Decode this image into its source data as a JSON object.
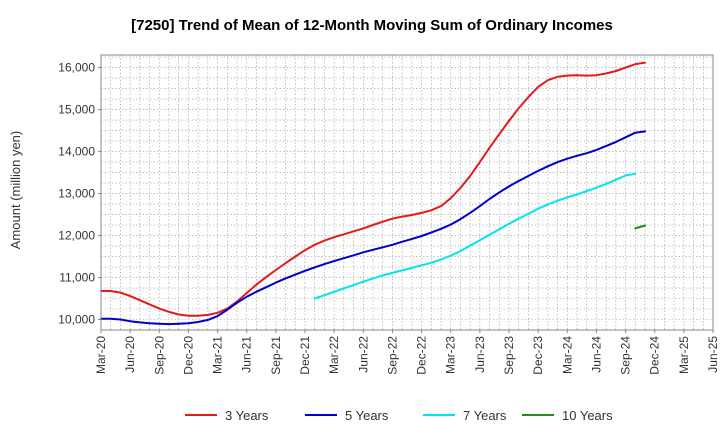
{
  "chart_data": {
    "type": "line",
    "title": "[7250]  Trend of Mean of 12-Month Moving Sum of Ordinary Incomes",
    "xlabel": "",
    "ylabel": "Amount (million yen)",
    "ylim": [
      9750,
      16300
    ],
    "yticks": [
      10000,
      11000,
      12000,
      13000,
      14000,
      15000,
      16000
    ],
    "ytick_labels": [
      "10,000",
      "11,000",
      "12,000",
      "13,000",
      "14,000",
      "15,000",
      "16,000"
    ],
    "xtick_labels": [
      "Mar-20",
      "Jun-20",
      "Sep-20",
      "Dec-20",
      "Mar-21",
      "Jun-21",
      "Sep-21",
      "Dec-21",
      "Mar-22",
      "Jun-22",
      "Sep-22",
      "Dec-22",
      "Mar-23",
      "Jun-23",
      "Sep-23",
      "Dec-23",
      "Mar-24",
      "Jun-24",
      "Sep-24",
      "Dec-24",
      "Mar-25",
      "Jun-25"
    ],
    "x_quarters_count": 22,
    "grid": true,
    "legend_position": "bottom",
    "series": [
      {
        "name": "3 Years",
        "color": "#e31a1c",
        "points": [
          [
            0,
            10680
          ],
          [
            0.33,
            10680
          ],
          [
            0.67,
            10640
          ],
          [
            1,
            10560
          ],
          [
            1.33,
            10460
          ],
          [
            1.67,
            10360
          ],
          [
            2,
            10260
          ],
          [
            2.33,
            10180
          ],
          [
            2.67,
            10120
          ],
          [
            3,
            10090
          ],
          [
            3.33,
            10090
          ],
          [
            3.67,
            10110
          ],
          [
            4,
            10160
          ],
          [
            4.33,
            10260
          ],
          [
            4.67,
            10430
          ],
          [
            5,
            10630
          ],
          [
            5.33,
            10830
          ],
          [
            5.67,
            11010
          ],
          [
            6,
            11180
          ],
          [
            6.33,
            11340
          ],
          [
            6.67,
            11500
          ],
          [
            7,
            11650
          ],
          [
            7.33,
            11780
          ],
          [
            7.67,
            11880
          ],
          [
            8,
            11960
          ],
          [
            8.33,
            12030
          ],
          [
            8.67,
            12100
          ],
          [
            9,
            12170
          ],
          [
            9.33,
            12250
          ],
          [
            9.67,
            12330
          ],
          [
            10,
            12400
          ],
          [
            10.33,
            12450
          ],
          [
            10.67,
            12490
          ],
          [
            11,
            12540
          ],
          [
            11.33,
            12600
          ],
          [
            11.67,
            12700
          ],
          [
            12,
            12890
          ],
          [
            12.33,
            13130
          ],
          [
            12.67,
            13420
          ],
          [
            13,
            13750
          ],
          [
            13.33,
            14090
          ],
          [
            13.67,
            14420
          ],
          [
            14,
            14730
          ],
          [
            14.33,
            15030
          ],
          [
            14.67,
            15300
          ],
          [
            15,
            15540
          ],
          [
            15.33,
            15700
          ],
          [
            15.67,
            15780
          ],
          [
            16,
            15810
          ],
          [
            16.33,
            15820
          ],
          [
            16.67,
            15810
          ],
          [
            17,
            15820
          ],
          [
            17.33,
            15860
          ],
          [
            17.67,
            15920
          ],
          [
            18,
            16000
          ],
          [
            18.33,
            16080
          ],
          [
            18.67,
            16120
          ]
        ]
      },
      {
        "name": "5 Years",
        "color": "#0000cc",
        "points": [
          [
            0,
            10020
          ],
          [
            0.33,
            10020
          ],
          [
            0.67,
            10000
          ],
          [
            1,
            9960
          ],
          [
            1.33,
            9930
          ],
          [
            1.67,
            9910
          ],
          [
            2,
            9900
          ],
          [
            2.33,
            9890
          ],
          [
            2.67,
            9900
          ],
          [
            3,
            9910
          ],
          [
            3.33,
            9940
          ],
          [
            3.67,
            9990
          ],
          [
            4,
            10080
          ],
          [
            4.33,
            10230
          ],
          [
            4.67,
            10400
          ],
          [
            5,
            10540
          ],
          [
            5.33,
            10660
          ],
          [
            5.67,
            10770
          ],
          [
            6,
            10880
          ],
          [
            6.33,
            10980
          ],
          [
            6.67,
            11070
          ],
          [
            7,
            11160
          ],
          [
            7.33,
            11240
          ],
          [
            7.67,
            11320
          ],
          [
            8,
            11390
          ],
          [
            8.33,
            11460
          ],
          [
            8.67,
            11530
          ],
          [
            9,
            11600
          ],
          [
            9.33,
            11660
          ],
          [
            9.67,
            11720
          ],
          [
            10,
            11780
          ],
          [
            10.33,
            11850
          ],
          [
            10.67,
            11920
          ],
          [
            11,
            11990
          ],
          [
            11.33,
            12070
          ],
          [
            11.67,
            12160
          ],
          [
            12,
            12260
          ],
          [
            12.33,
            12390
          ],
          [
            12.67,
            12540
          ],
          [
            13,
            12700
          ],
          [
            13.33,
            12870
          ],
          [
            13.67,
            13030
          ],
          [
            14,
            13170
          ],
          [
            14.33,
            13300
          ],
          [
            14.67,
            13420
          ],
          [
            15,
            13540
          ],
          [
            15.33,
            13650
          ],
          [
            15.67,
            13750
          ],
          [
            16,
            13830
          ],
          [
            16.33,
            13900
          ],
          [
            16.67,
            13960
          ],
          [
            17,
            14040
          ],
          [
            17.33,
            14130
          ],
          [
            17.67,
            14230
          ],
          [
            18,
            14340
          ],
          [
            18.33,
            14450
          ],
          [
            18.67,
            14480
          ]
        ]
      },
      {
        "name": "7 Years",
        "color": "#00e5ee",
        "points": [
          [
            7.33,
            10500
          ],
          [
            7.67,
            10580
          ],
          [
            8,
            10660
          ],
          [
            8.33,
            10740
          ],
          [
            8.67,
            10820
          ],
          [
            9,
            10900
          ],
          [
            9.33,
            10980
          ],
          [
            9.67,
            11050
          ],
          [
            10,
            11110
          ],
          [
            10.33,
            11170
          ],
          [
            10.67,
            11230
          ],
          [
            11,
            11290
          ],
          [
            11.33,
            11350
          ],
          [
            11.67,
            11430
          ],
          [
            12,
            11520
          ],
          [
            12.33,
            11630
          ],
          [
            12.67,
            11760
          ],
          [
            13,
            11890
          ],
          [
            13.33,
            12020
          ],
          [
            13.67,
            12150
          ],
          [
            14,
            12280
          ],
          [
            14.33,
            12400
          ],
          [
            14.67,
            12520
          ],
          [
            15,
            12640
          ],
          [
            15.33,
            12740
          ],
          [
            15.67,
            12830
          ],
          [
            16,
            12910
          ],
          [
            16.33,
            12980
          ],
          [
            16.67,
            13060
          ],
          [
            17,
            13140
          ],
          [
            17.33,
            13230
          ],
          [
            17.67,
            13330
          ],
          [
            18,
            13430
          ],
          [
            18.33,
            13470
          ]
        ]
      },
      {
        "name": "10 Years",
        "color": "#228b22",
        "points": [
          [
            18.33,
            12170
          ],
          [
            18.67,
            12240
          ]
        ]
      }
    ]
  }
}
